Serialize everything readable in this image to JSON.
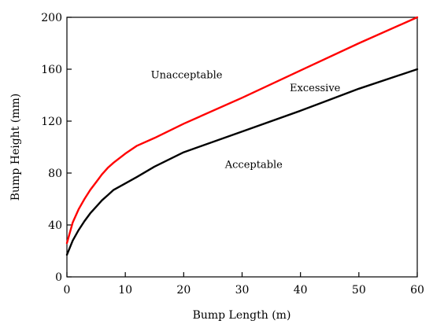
{
  "chart_data": {
    "type": "line",
    "title": "",
    "xlabel": "Bump Length (m)",
    "ylabel": "Bump Height (mm)",
    "xlim": [
      0,
      60
    ],
    "ylim": [
      0,
      200
    ],
    "xticks": [
      0,
      10,
      20,
      30,
      40,
      50,
      60
    ],
    "yticks": [
      0,
      40,
      80,
      120,
      160,
      200
    ],
    "grid": false,
    "series": [
      {
        "color": "#ff0000",
        "x": [
          0,
          1,
          2,
          3,
          4,
          5,
          6,
          7,
          8,
          10,
          12,
          15,
          20,
          30,
          40,
          50,
          60
        ],
        "y": [
          26,
          42,
          52,
          60,
          67,
          73,
          79,
          84,
          88,
          95,
          101,
          107,
          118,
          138,
          159,
          180,
          200
        ]
      },
      {
        "color": "#000000",
        "x": [
          0,
          1,
          2,
          3,
          4,
          5,
          6,
          7,
          8,
          10,
          12,
          15,
          20,
          30,
          40,
          50,
          60
        ],
        "y": [
          17,
          28,
          36,
          43,
          49,
          54,
          59,
          63,
          67,
          72,
          77,
          85,
          96,
          112,
          128,
          145,
          160
        ]
      }
    ],
    "annotations": [
      {
        "text": "Unacceptable",
        "x": 20.5,
        "y": 153
      },
      {
        "text": "Excessive",
        "x": 42.5,
        "y": 143
      },
      {
        "text": "Acceptable",
        "x": 32,
        "y": 84
      }
    ]
  }
}
